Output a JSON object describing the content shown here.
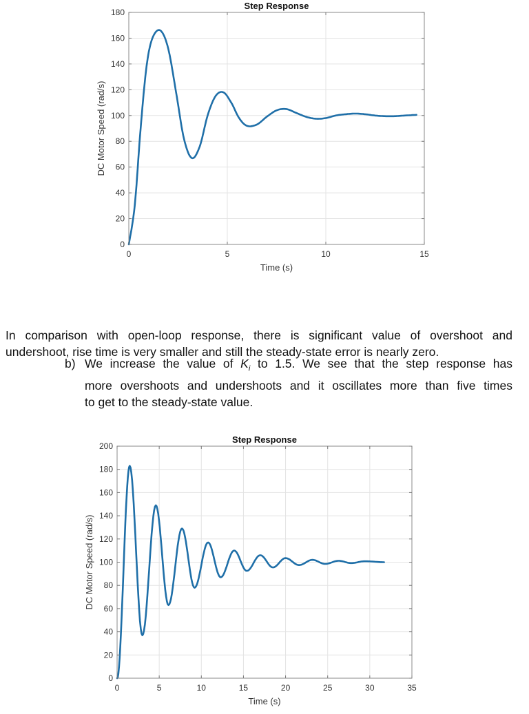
{
  "chart_data": [
    {
      "type": "line",
      "title": "Step Response",
      "xlabel": "Time (s)",
      "ylabel": "DC Motor Speed (rad/s)",
      "xlim": [
        0,
        15
      ],
      "ylim": [
        0,
        180
      ],
      "xticks": [
        0,
        5,
        10,
        15
      ],
      "yticks": [
        0,
        20,
        40,
        60,
        80,
        100,
        120,
        140,
        160,
        180
      ],
      "grid": true,
      "line_color": "#1f6fa8",
      "series": [
        {
          "name": "step response",
          "x": [
            0,
            0.3,
            0.6,
            0.9,
            1.2,
            1.6,
            2.0,
            2.4,
            2.8,
            3.2,
            3.6,
            4.0,
            4.4,
            4.8,
            5.2,
            5.6,
            6.0,
            6.5,
            7.0,
            7.5,
            8.0,
            8.5,
            9.0,
            9.5,
            10.0,
            10.5,
            11.0,
            11.5,
            12.0,
            12.5,
            13.0,
            13.5,
            14.0,
            14.6
          ],
          "y": [
            0,
            30,
            90,
            138,
            160,
            166,
            152,
            118,
            82,
            67,
            76,
            100,
            115,
            118,
            110,
            98,
            92,
            93,
            99,
            104,
            105,
            102,
            99,
            97.5,
            98,
            100,
            101,
            101.5,
            101,
            100,
            99.5,
            99.5,
            100,
            100.5
          ]
        }
      ]
    },
    {
      "type": "line",
      "title": "Step Response",
      "xlabel": "Time (s)",
      "ylabel": "DC Motor Speed (rad/s)",
      "xlim": [
        0,
        35
      ],
      "ylim": [
        0,
        200
      ],
      "xticks": [
        0,
        5,
        10,
        15,
        20,
        25,
        30,
        35
      ],
      "yticks": [
        0,
        20,
        40,
        60,
        80,
        100,
        120,
        140,
        160,
        180,
        200
      ],
      "grid": true,
      "line_color": "#1f6fa8",
      "series": [
        {
          "name": "step response (Ki = 1.5)",
          "peaks": [
            {
              "t": 1.5,
              "y": 183
            },
            {
              "t": 3.0,
              "y": 37
            },
            {
              "t": 4.6,
              "y": 149
            },
            {
              "t": 6.1,
              "y": 63
            },
            {
              "t": 7.7,
              "y": 129
            },
            {
              "t": 9.2,
              "y": 78
            },
            {
              "t": 10.8,
              "y": 117
            },
            {
              "t": 12.3,
              "y": 87
            },
            {
              "t": 13.9,
              "y": 110
            },
            {
              "t": 15.4,
              "y": 92.5
            },
            {
              "t": 17.0,
              "y": 106
            },
            {
              "t": 18.5,
              "y": 95.5
            },
            {
              "t": 20.0,
              "y": 103.5
            },
            {
              "t": 21.6,
              "y": 97.5
            },
            {
              "t": 23.2,
              "y": 102
            },
            {
              "t": 24.7,
              "y": 98.5
            },
            {
              "t": 26.3,
              "y": 101.2
            },
            {
              "t": 27.8,
              "y": 99.2
            },
            {
              "t": 29.4,
              "y": 100.8
            },
            {
              "t": 31.7,
              "y": 100
            }
          ]
        }
      ]
    }
  ],
  "text": {
    "para1": "In comparison with open-loop response, there is significant value of overshoot and undershoot, rise time is very smaller and still the steady-state error is nearly zero.",
    "para1_line1": "In comparison with open-loop response, there is significant value of overshoot and",
    "para1_line2": "undershoot, rise time is very smaller and still the steady-state error is nearly zero.",
    "item_b_label": "b)",
    "item_b_pre": "We increase the value of ",
    "item_b_var": "K",
    "item_b_sub": "i",
    "item_b_line1_post": " to 1.5. We see that the step response has",
    "item_b_line2": "more overshoots and undershoots and it oscillates more than five times",
    "item_b_line3": "to get to the steady-state value."
  }
}
